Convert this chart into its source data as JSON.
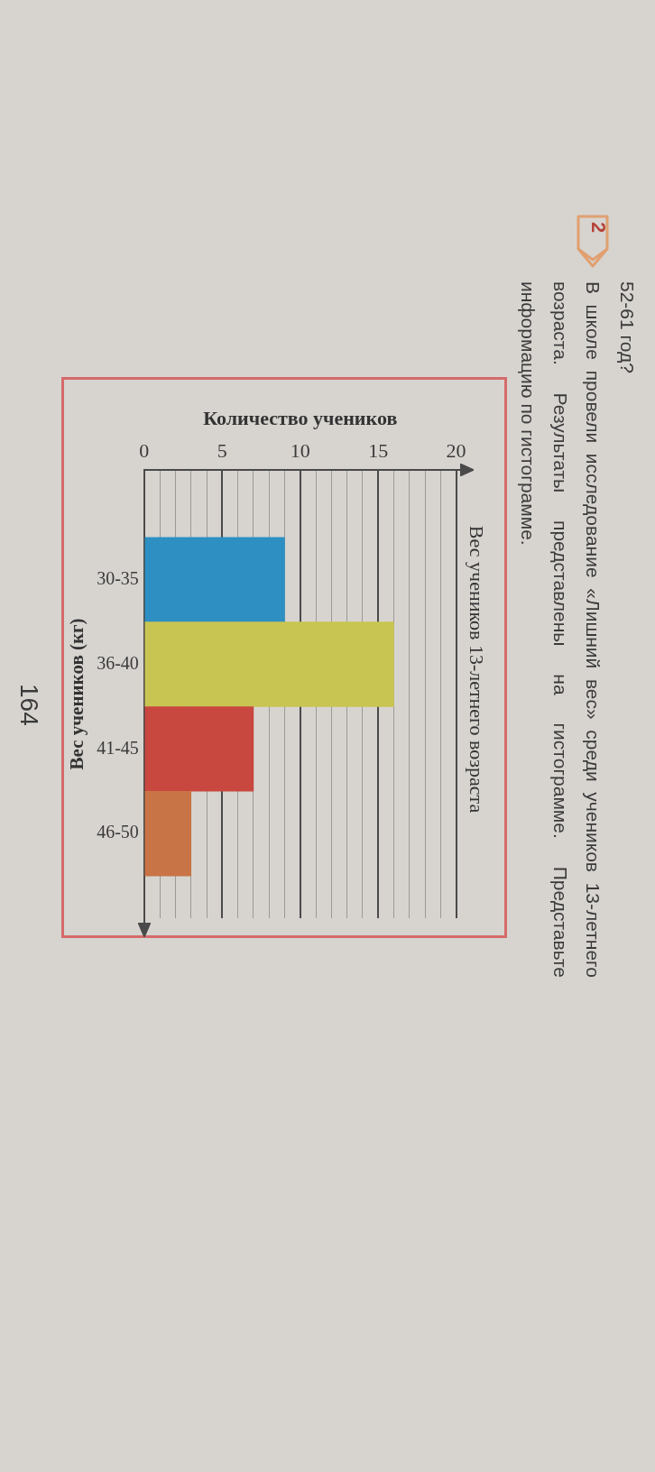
{
  "chart_data": {
    "type": "bar",
    "orientation": "horizontal",
    "title": "Вес учеников 13-летнего возраста",
    "xlabel": "Количество учеников",
    "ylabel": "Вес учеников (кг)",
    "categories": [
      "30-35",
      "36-40",
      "41-45",
      "46-50"
    ],
    "values": [
      9,
      16,
      7,
      3
    ],
    "colors": [
      "#2e8fc2",
      "#c9c552",
      "#c8473f",
      "#c97446"
    ],
    "xlim": [
      0,
      20
    ],
    "xticks": [
      0,
      {
        "value": 1,
        "label": null
      },
      {
        "value": 2,
        "label": null
      },
      {
        "value": 3,
        "label": null
      },
      {
        "value": 4,
        "label": null
      },
      5,
      {
        "value": 6,
        "label": null
      },
      {
        "value": 7,
        "label": null
      },
      {
        "value": 8,
        "label": null
      },
      {
        "value": 9,
        "label": null
      },
      10,
      {
        "value": 11,
        "label": null
      },
      {
        "value": 12,
        "label": null
      },
      {
        "value": 13,
        "label": null
      },
      {
        "value": 14,
        "label": null
      },
      15,
      {
        "value": 16,
        "label": null
      },
      {
        "value": 17,
        "label": null
      },
      {
        "value": 18,
        "label": null
      },
      {
        "value": 19,
        "label": null
      },
      20
    ],
    "grid": "x",
    "annotations": [
      "52-61 год?",
      "2",
      "В школе провели исследование «Лишний вес» среди учеников 13-летнего возраста. Результаты представлены на гистограмме. Представьте информацию по гистограмме.",
      "164"
    ]
  }
}
